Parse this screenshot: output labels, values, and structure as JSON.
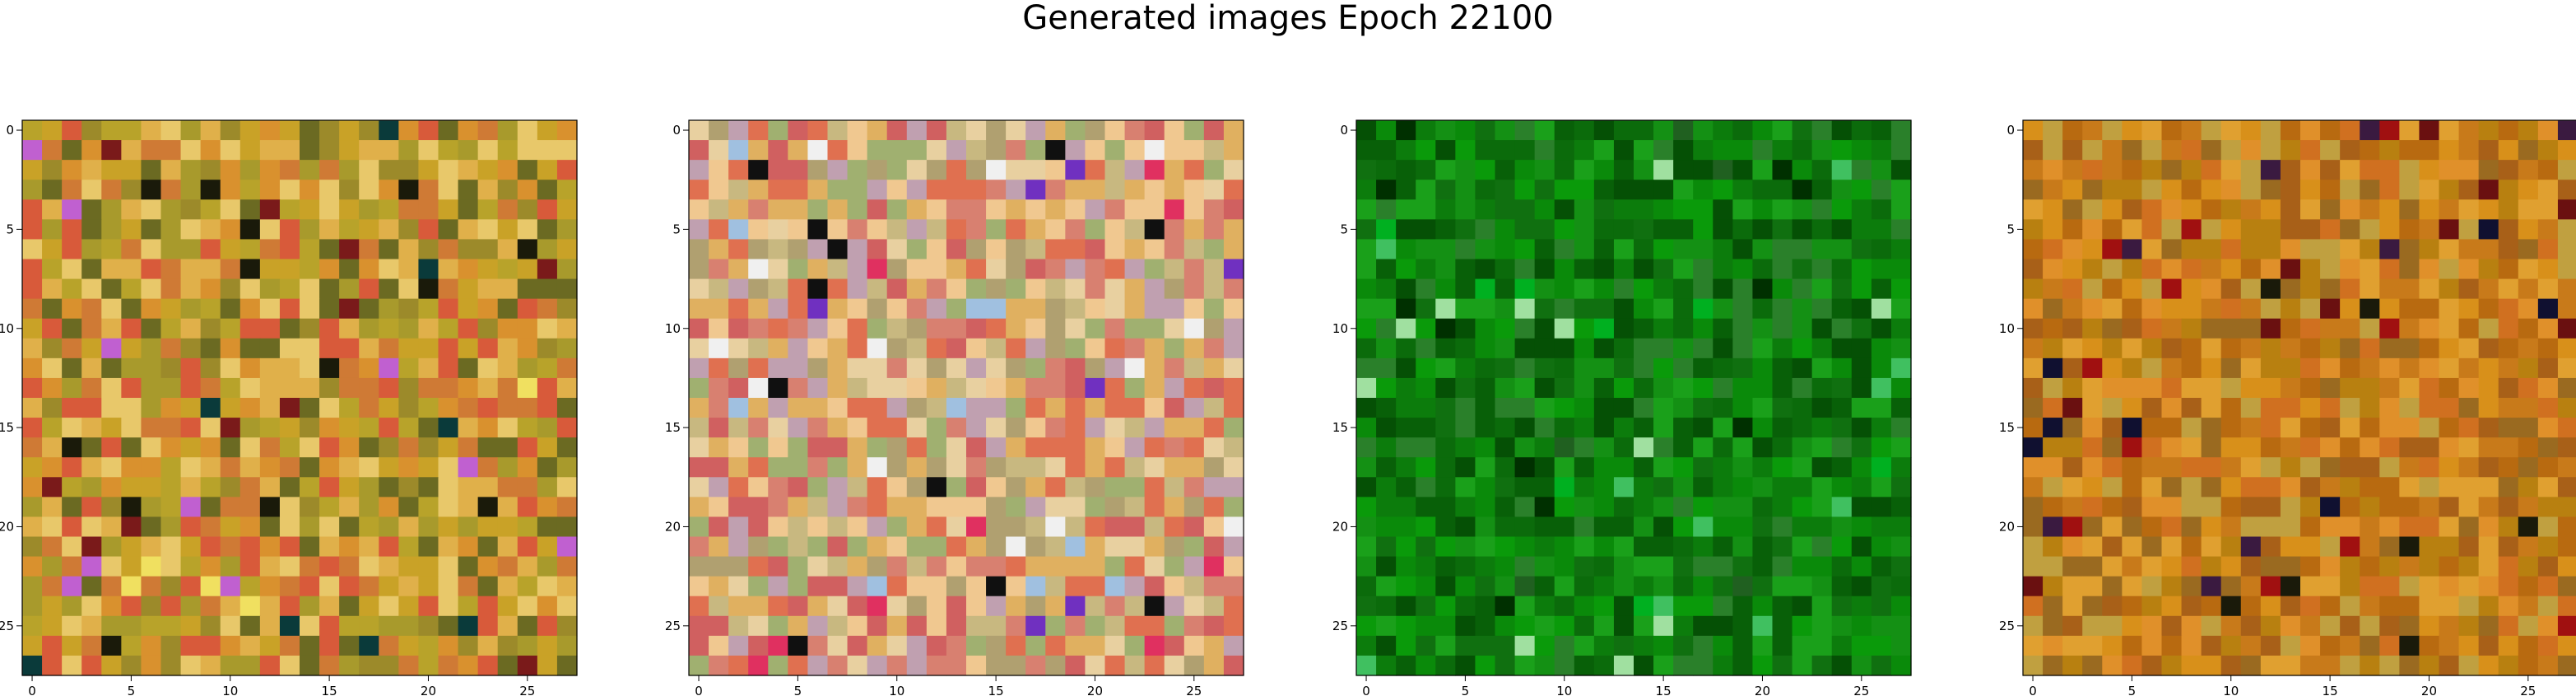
{
  "figure": {
    "title": "Generated images Epoch 22100"
  },
  "chart_data": [
    {
      "type": "heatmap",
      "grid_size": 28,
      "x_ticks": [
        0,
        5,
        10,
        15,
        20,
        25
      ],
      "y_ticks": [
        0,
        5,
        10,
        15,
        20,
        25
      ],
      "palette": [
        "#c9a227",
        "#d9912e",
        "#b8a32a",
        "#e0b04a",
        "#a89a2c",
        "#cf7a35",
        "#e8c86a",
        "#9c8a2a",
        "#d85a3a",
        "#6b6a22"
      ],
      "accent_colors": [
        "#1a1a0a",
        "#0a3a3a",
        "#7a1a1a",
        "#c060d0",
        "#f0e060"
      ],
      "seed": 11
    },
    {
      "type": "heatmap",
      "grid_size": 28,
      "x_ticks": [
        0,
        5,
        10,
        15,
        20,
        25
      ],
      "y_ticks": [
        0,
        5,
        10,
        15,
        20,
        25
      ],
      "palette": [
        "#e0b060",
        "#d88070",
        "#c8b880",
        "#e8d0a0",
        "#d06060",
        "#b0a070",
        "#f0c890",
        "#e07050",
        "#c0a0b0",
        "#a0b070"
      ],
      "accent_colors": [
        "#e03060",
        "#7030c0",
        "#f0f0f0",
        "#a0c0e0",
        "#101010"
      ],
      "seed": 23
    },
    {
      "type": "heatmap",
      "grid_size": 28,
      "x_ticks": [
        0,
        5,
        10,
        15,
        20,
        25
      ],
      "y_ticks": [
        0,
        5,
        10,
        15,
        20,
        25
      ],
      "palette": [
        "#0a8a0a",
        "#107010",
        "#0a9a0a",
        "#086008",
        "#1aa01a",
        "#0c7c0c",
        "#055005",
        "#149014",
        "#2a802a",
        "#0b6b0b"
      ],
      "accent_colors": [
        "#a0e0a0",
        "#003000",
        "#40c060",
        "#00b020",
        "#206020"
      ],
      "seed": 37
    },
    {
      "type": "heatmap",
      "grid_size": 28,
      "x_ticks": [
        0,
        5,
        10,
        15,
        20,
        25
      ],
      "y_ticks": [
        0,
        5,
        10,
        15,
        20,
        25
      ],
      "palette": [
        "#d8901a",
        "#c87a1a",
        "#b86a10",
        "#e0a030",
        "#a86018",
        "#d07020",
        "#c0a040",
        "#b88010",
        "#e0902a",
        "#9a6a20"
      ],
      "accent_colors": [
        "#1a1a0a",
        "#6a1010",
        "#3a1a40",
        "#a01010",
        "#101030"
      ],
      "seed": 53
    }
  ]
}
